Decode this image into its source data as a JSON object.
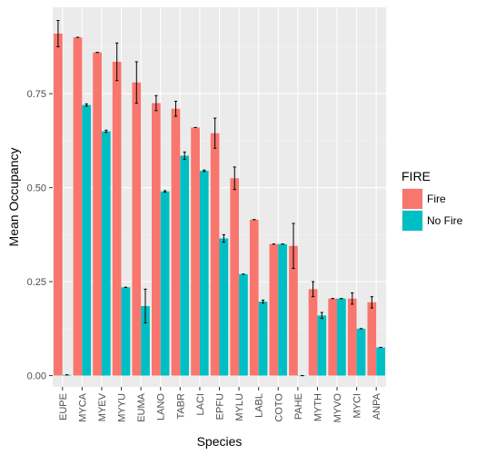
{
  "chart_data": {
    "type": "bar",
    "xlabel": "Species",
    "ylabel": "Mean Occupancy",
    "ylim": [
      -0.03,
      0.98
    ],
    "yticks": [
      0.0,
      0.25,
      0.5,
      0.75
    ],
    "ytick_labels": [
      "0.00",
      "0.25",
      "0.50",
      "0.75"
    ],
    "grid": true,
    "legend": {
      "title": "FIRE",
      "position": "right"
    },
    "categories": [
      "EUPE",
      "MYCA",
      "MYEV",
      "MYYU",
      "EUMA",
      "LANO",
      "TABR",
      "LACI",
      "EPFU",
      "MYLU",
      "LABL",
      "COTO",
      "PAHE",
      "MYTH",
      "MYVO",
      "MYCI",
      "ANPA"
    ],
    "series": [
      {
        "name": "Fire",
        "color": "#F8766D",
        "values": [
          0.91,
          0.9,
          0.86,
          0.835,
          0.78,
          0.725,
          0.71,
          0.66,
          0.645,
          0.525,
          0.415,
          0.35,
          0.345,
          0.23,
          0.205,
          0.205,
          0.195
        ],
        "err": [
          0.035,
          0.0,
          0.0,
          0.05,
          0.055,
          0.02,
          0.02,
          0.0,
          0.04,
          0.03,
          0.0,
          0.0,
          0.06,
          0.02,
          0.0,
          0.015,
          0.015
        ]
      },
      {
        "name": "No Fire",
        "color": "#00BFC4",
        "values": [
          0.002,
          0.72,
          0.65,
          0.235,
          0.185,
          0.49,
          0.585,
          0.545,
          0.365,
          0.27,
          0.197,
          0.35,
          0.0,
          0.16,
          0.205,
          0.125,
          0.075
        ],
        "err": [
          0.0,
          0.003,
          0.003,
          0.0,
          0.045,
          0.002,
          0.01,
          0.002,
          0.01,
          0.0,
          0.004,
          0.0,
          0.0,
          0.008,
          0.0,
          0.0,
          0.0
        ]
      }
    ]
  }
}
